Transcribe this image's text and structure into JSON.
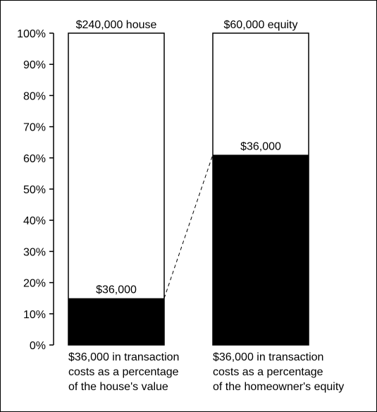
{
  "chart_data": {
    "type": "bar",
    "categories": [
      "$36,000 in transaction costs as a percentage of the house's value",
      "$36,000 in transaction costs as a percentage of the homeowner's equity"
    ],
    "values": [
      15,
      61
    ],
    "unit": "%",
    "ylim": [
      0,
      100
    ],
    "yticks": [
      "0%",
      "10%",
      "20%",
      "30%",
      "40%",
      "50%",
      "60%",
      "70%",
      "80%",
      "90%",
      "100%"
    ],
    "bar_top_labels": [
      "$240,000 house",
      "$60,000 equity"
    ],
    "fill_labels": [
      "$36,000",
      "$36,000"
    ],
    "category_label_lines": [
      [
        "$36,000 in transaction",
        "costs as a percentage",
        "of the house's value"
      ],
      [
        "$36,000 in transaction",
        "costs as a percentage",
        "of the homeowner's equity"
      ]
    ],
    "connector": "dashed line joining the tops of the two filled portions",
    "grid": false,
    "legend": "none"
  },
  "colors": {
    "fill": "#000000",
    "background": "#ffffff",
    "outline": "#000000"
  }
}
